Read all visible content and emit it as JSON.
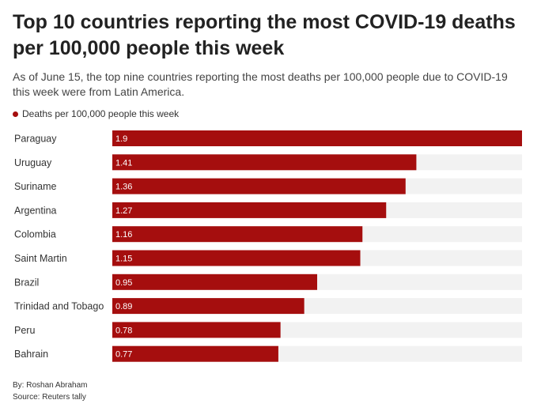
{
  "title": "Top 10 countries reporting the most COVID-19 deaths per 100,000 people this week",
  "subtitle": "As of June 15, the top nine countries reporting the most deaths per 100,000 people due to COVID-19 this week were from Latin America.",
  "legend": "Deaths per 100,000 people this week",
  "footer": {
    "byline": "By: Roshan Abraham",
    "source": "Source: Reuters tally"
  },
  "colors": {
    "bar": "#a50e0e",
    "track": "#f2f2f2",
    "label_in_bar": "#ffffff"
  },
  "chart_data": {
    "type": "bar",
    "orientation": "horizontal",
    "categories": [
      "Paraguay",
      "Uruguay",
      "Suriname",
      "Argentina",
      "Colombia",
      "Saint Martin",
      "Brazil",
      "Trinidad and Tobago",
      "Peru",
      "Bahrain"
    ],
    "values": [
      1.9,
      1.41,
      1.36,
      1.27,
      1.16,
      1.15,
      0.95,
      0.89,
      0.78,
      0.77
    ],
    "value_labels": [
      "1.9",
      "1.41",
      "1.36",
      "1.27",
      "1.16",
      "1.15",
      "0.95",
      "0.89",
      "0.78",
      "0.77"
    ],
    "series_name": "Deaths per 100,000 people this week",
    "xlim": [
      0,
      1.9
    ],
    "grid": false
  }
}
